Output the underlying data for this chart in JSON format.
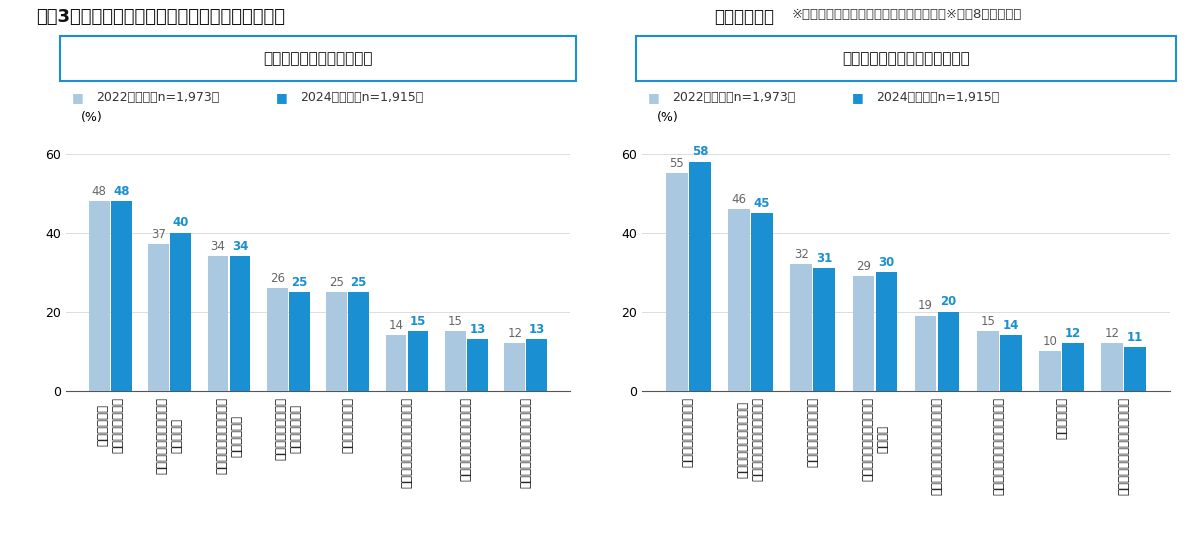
{
  "title_bold": "＜嘦3＞出来合いの食品の購入理由、選定時重視点",
  "title_normal": "（複数回答）",
  "note": "※ベース：自宅で出来合いの食品喫食者　※上位8項目を抜粹",
  "left_section_title": "出来合いの食品の購入理由",
  "right_section_title": "出来合いの食品の選定時重視点",
  "legend_2022": "2022年全体（n=1,973）",
  "legend_2024": "2024年全体（n=1,915）",
  "color_2022": "#aac8e0",
  "color_2024": "#1a8fd1",
  "left_categories": [
    "手軽に食事を\n済ませられるから",
    "買い物や食事を作るのが\n面倒だから",
    "自分では作れない料理を\n食べたいから",
    "買い物や食事を作る\n時間がないから",
    "値段が手頃だから",
    "食事の品数を増やしたいから",
    "サイズ・容量が手頃だから",
    "食材を余らせなくて済むから"
  ],
  "left_2022": [
    48,
    37,
    34,
    26,
    25,
    14,
    15,
    12
  ],
  "left_2024": [
    48,
    40,
    34,
    25,
    25,
    15,
    13,
    13
  ],
  "right_categories": [
    "おいしそうであること",
    "値段が安いこと／コスト\nパフォーマンスがよいこと",
    "量がちょうどよいこと",
    "自分で作らないメニューで\nあること",
    "栄養がバランスよく摂れること",
    "食べ慣れたメニューであること",
    "量が多いこと",
    "不足している栄養が摂れること"
  ],
  "right_2022": [
    55,
    46,
    32,
    29,
    19,
    15,
    10,
    12
  ],
  "right_2024": [
    58,
    45,
    31,
    30,
    20,
    14,
    12,
    11
  ],
  "ylim_max": 65,
  "yticks": [
    0,
    20,
    40,
    60
  ],
  "ylabel_label": "(%)",
  "bg_color": "#ffffff",
  "section_border_color": "#1a8fd1",
  "title_fontsize": 13,
  "axis_tick_fontsize": 9,
  "bar_label_fontsize": 8.5,
  "legend_fontsize": 9,
  "section_fontsize": 11,
  "cat_label_fontsize": 8.5,
  "bar_width": 0.35
}
